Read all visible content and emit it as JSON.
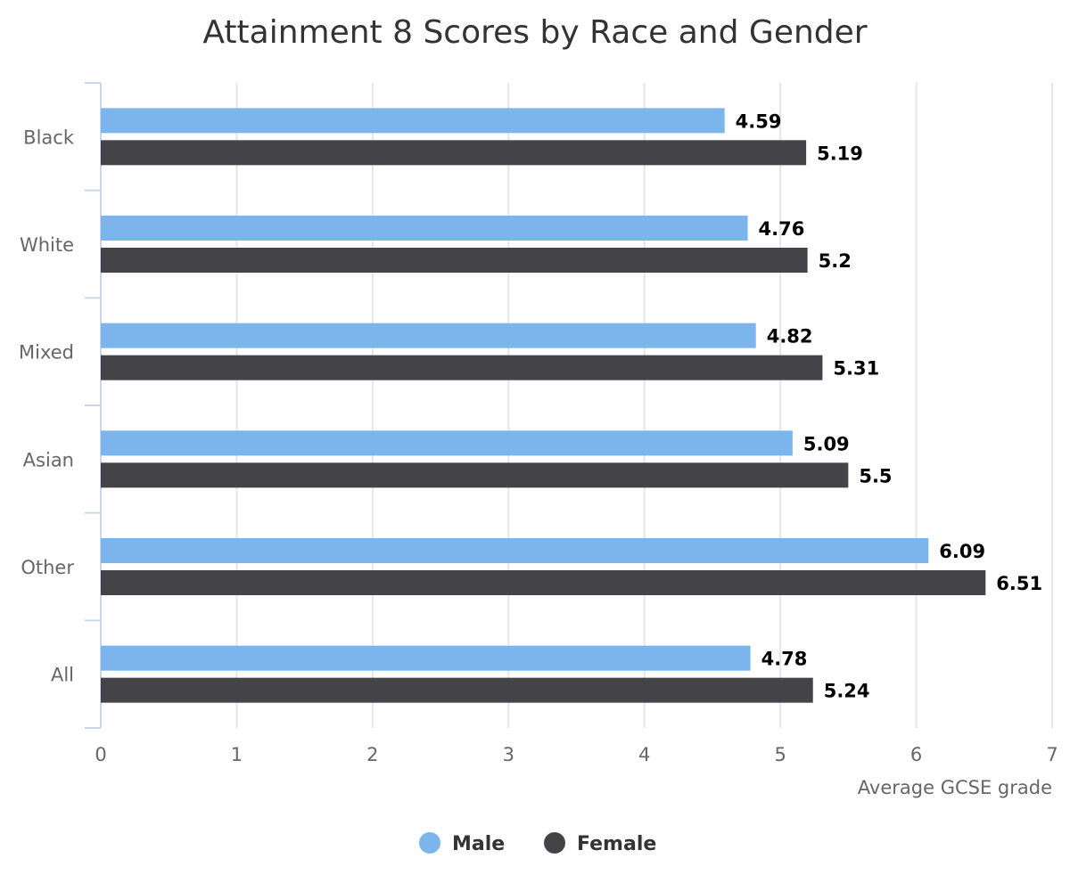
{
  "chart_data": {
    "type": "bar",
    "orientation": "horizontal",
    "title": "Attainment 8 Scores by Race and Gender",
    "xlabel": "Average GCSE grade",
    "categories": [
      "Black",
      "White",
      "Mixed",
      "Asian",
      "Other",
      "All"
    ],
    "series": [
      {
        "name": "Male",
        "color": "#7cb5ec",
        "values": [
          4.59,
          4.76,
          4.82,
          5.09,
          6.09,
          4.78
        ]
      },
      {
        "name": "Female",
        "color": "#434348",
        "values": [
          5.19,
          5.2,
          5.31,
          5.5,
          6.51,
          5.24
        ]
      }
    ],
    "xlim": [
      0,
      7
    ],
    "ticks": [
      "0",
      "1",
      "2",
      "3",
      "4",
      "5",
      "6",
      "7"
    ],
    "grid": true,
    "legend_position": "bottom-center"
  }
}
